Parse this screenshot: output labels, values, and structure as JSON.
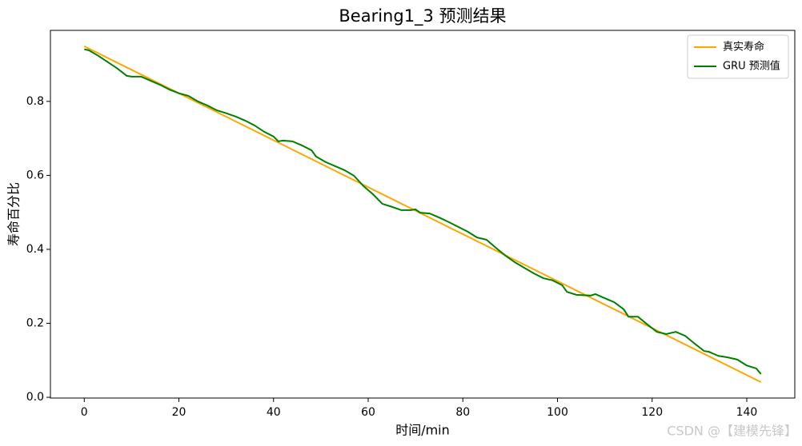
{
  "chart_data": {
    "type": "line",
    "title": "Bearing1_3 预测结果",
    "xlabel": "时间/min",
    "ylabel": "寿命百分比",
    "xlim": [
      -7.15,
      150.15
    ],
    "xticks": [
      0,
      20,
      40,
      60,
      80,
      100,
      120,
      140
    ],
    "ylim": [
      -0.002,
      0.992
    ],
    "yticks": [
      {
        "value": 0,
        "label": "0.0"
      },
      0.2,
      0.4,
      0.6,
      0.8
    ],
    "grid": false,
    "legend": "upper right",
    "series": [
      {
        "name": "真实寿命",
        "color": "#ffa500",
        "x": [
          0,
          143
        ],
        "values": [
          0.949,
          0.041
        ]
      },
      {
        "name": "GRU 预测值",
        "color": "#008000",
        "x": [
          0,
          1,
          3,
          5,
          7,
          9,
          10,
          12,
          14,
          16,
          18,
          20,
          22,
          24,
          26,
          28,
          30,
          32,
          34,
          36,
          38,
          40,
          41,
          42,
          44,
          46,
          48,
          49,
          51,
          53,
          55,
          57,
          59,
          61,
          63,
          65,
          67,
          69,
          70,
          71,
          73,
          75,
          77,
          79,
          81,
          83,
          85,
          87,
          89,
          91,
          93,
          95,
          97,
          99,
          101,
          102,
          104,
          107,
          108,
          110,
          112,
          114,
          115,
          117,
          119,
          121,
          123,
          125,
          127,
          129,
          131,
          132,
          134,
          136,
          138,
          140,
          142,
          143
        ],
        "values": [
          0.941,
          0.938,
          0.923,
          0.906,
          0.889,
          0.869,
          0.867,
          0.867,
          0.856,
          0.845,
          0.832,
          0.822,
          0.815,
          0.8,
          0.789,
          0.776,
          0.768,
          0.759,
          0.748,
          0.735,
          0.718,
          0.705,
          0.692,
          0.694,
          0.692,
          0.681,
          0.668,
          0.651,
          0.636,
          0.625,
          0.614,
          0.599,
          0.571,
          0.549,
          0.523,
          0.515,
          0.506,
          0.506,
          0.508,
          0.499,
          0.497,
          0.486,
          0.474,
          0.461,
          0.448,
          0.432,
          0.426,
          0.404,
          0.383,
          0.365,
          0.35,
          0.335,
          0.322,
          0.316,
          0.303,
          0.285,
          0.277,
          0.275,
          0.279,
          0.268,
          0.257,
          0.238,
          0.218,
          0.218,
          0.197,
          0.177,
          0.171,
          0.177,
          0.166,
          0.145,
          0.125,
          0.123,
          0.112,
          0.108,
          0.102,
          0.086,
          0.078,
          0.063
        ]
      }
    ],
    "watermark": "CSDN @【建模先锋】"
  }
}
